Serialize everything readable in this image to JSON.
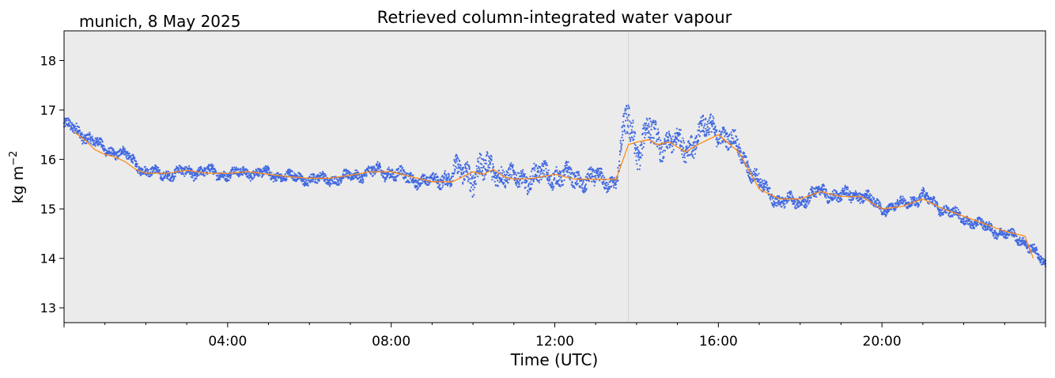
{
  "chart_data": {
    "type": "scatter",
    "title": "Retrieved column-integrated water vapour",
    "subtitle": "munich, 8 May 2025",
    "xlabel": "Time (UTC)",
    "ylabel_main": "kg m",
    "ylabel_exp": "−2",
    "xlim": [
      0,
      24
    ],
    "ylim": [
      12.7,
      18.6
    ],
    "x_ticks": [
      {
        "value": 4,
        "label": "04:00"
      },
      {
        "value": 8,
        "label": "08:00"
      },
      {
        "value": 12,
        "label": "12:00"
      },
      {
        "value": 16,
        "label": "16:00"
      },
      {
        "value": 20,
        "label": "20:00"
      }
    ],
    "y_ticks": [
      {
        "value": 13,
        "label": "13"
      },
      {
        "value": 14,
        "label": "14"
      },
      {
        "value": 15,
        "label": "15"
      },
      {
        "value": 16,
        "label": "16"
      },
      {
        "value": 17,
        "label": "17"
      },
      {
        "value": 18,
        "label": "18"
      }
    ],
    "vertical_line_x": 13.8,
    "grid": false,
    "colors": {
      "background": "#ebebeb",
      "points": "#4169e1",
      "smoothed": "#ff8c1a",
      "vline": "#d4d4d4"
    },
    "series": [
      {
        "kind": "raw-points",
        "x": [
          0,
          0.5,
          1,
          1.5,
          2,
          2.5,
          3,
          3.5,
          4,
          4.5,
          5,
          5.5,
          6,
          6.5,
          7,
          7.5,
          8,
          8.5,
          9,
          9.5,
          10,
          10.5,
          11,
          11.5,
          12,
          12.5,
          13,
          13.5,
          13.6,
          13.8,
          14.0,
          14.3,
          14.5,
          14.8,
          15.2,
          15.6,
          16,
          16.5,
          17,
          17.5,
          18,
          18.5,
          19,
          19.5,
          20,
          20.5,
          21,
          21.5,
          22,
          22.5,
          23,
          23.5,
          24
        ],
        "y": [
          16.7,
          16.5,
          16.2,
          16.1,
          15.75,
          15.7,
          15.75,
          15.75,
          15.7,
          15.75,
          15.7,
          15.65,
          15.6,
          15.6,
          15.65,
          15.75,
          15.75,
          15.6,
          15.55,
          15.7,
          15.75,
          15.8,
          15.6,
          15.65,
          15.7,
          15.6,
          15.6,
          15.55,
          16.0,
          16.9,
          16.2,
          16.6,
          16.3,
          16.4,
          16.2,
          16.6,
          16.6,
          16.2,
          15.5,
          15.15,
          15.15,
          15.35,
          15.25,
          15.3,
          15.0,
          15.1,
          15.25,
          15.0,
          14.8,
          14.65,
          14.5,
          14.35,
          13.85
        ],
        "spread": [
          0.15,
          0.15,
          0.12,
          0.12,
          0.12,
          0.12,
          0.13,
          0.13,
          0.12,
          0.12,
          0.12,
          0.12,
          0.12,
          0.12,
          0.12,
          0.14,
          0.16,
          0.14,
          0.12,
          0.25,
          0.35,
          0.3,
          0.2,
          0.25,
          0.25,
          0.22,
          0.22,
          0.15,
          0.3,
          0.5,
          0.35,
          0.35,
          0.35,
          0.25,
          0.3,
          0.3,
          0.25,
          0.22,
          0.18,
          0.15,
          0.15,
          0.15,
          0.15,
          0.15,
          0.12,
          0.12,
          0.14,
          0.12,
          0.12,
          0.12,
          0.12,
          0.12,
          0.12
        ]
      },
      {
        "kind": "smoothed-line",
        "x": [
          0.25,
          0.5,
          0.75,
          1,
          1.25,
          1.5,
          1.75,
          2,
          2.5,
          3,
          3.5,
          4,
          4.5,
          5,
          5.5,
          6,
          6.5,
          7,
          7.5,
          8,
          8.5,
          9,
          9.5,
          10,
          10.25,
          10.5,
          10.75,
          11,
          11.5,
          12,
          12.5,
          13,
          13.5,
          13.8,
          14,
          14.3,
          14.5,
          14.8,
          15.2,
          15.5,
          16,
          16.5,
          17,
          17.5,
          18,
          18.5,
          19,
          19.5,
          20,
          20.5,
          21,
          21.5,
          22,
          22.5,
          23,
          23.5,
          23.7
        ],
        "y": [
          16.55,
          16.4,
          16.2,
          16.1,
          16.05,
          15.95,
          15.8,
          15.72,
          15.72,
          15.78,
          15.72,
          15.72,
          15.75,
          15.7,
          15.65,
          15.62,
          15.62,
          15.68,
          15.75,
          15.75,
          15.65,
          15.55,
          15.55,
          15.75,
          15.7,
          15.8,
          15.65,
          15.6,
          15.62,
          15.7,
          15.6,
          15.6,
          15.6,
          16.3,
          16.35,
          16.4,
          16.3,
          16.35,
          16.15,
          16.3,
          16.5,
          16.15,
          15.4,
          15.2,
          15.2,
          15.35,
          15.25,
          15.25,
          15.0,
          15.05,
          15.2,
          15.0,
          14.85,
          14.7,
          14.55,
          14.45,
          14.0
        ]
      }
    ]
  }
}
